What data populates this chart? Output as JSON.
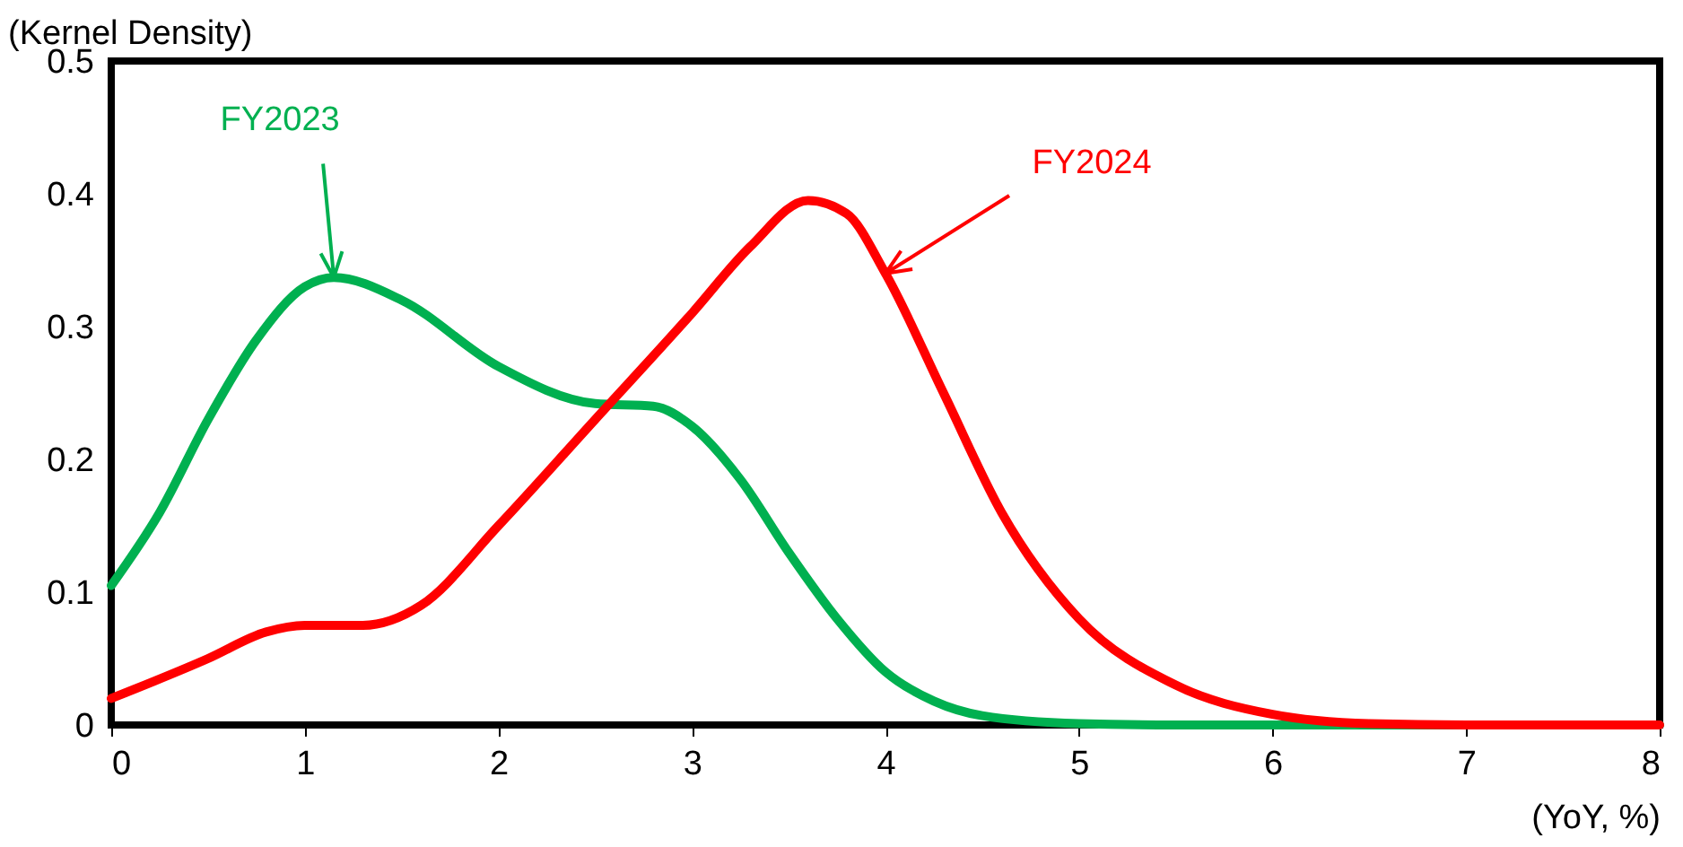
{
  "chart_data": {
    "type": "line",
    "xlabel": "(YoY, %)",
    "ylabel": "(Kernel Density)",
    "xlim": [
      0,
      8
    ],
    "xticks": [
      0,
      1,
      2,
      3,
      4,
      5,
      6,
      7,
      8
    ],
    "ylim": [
      0,
      0.5
    ],
    "yticks": [
      0,
      0.1,
      0.2,
      0.3,
      0.4,
      0.5
    ],
    "grid": false,
    "marker": "none",
    "line_style": "solid",
    "series": [
      {
        "color": "#00b050",
        "x": [
          0,
          0.25,
          0.5,
          0.75,
          1.0,
          1.15,
          1.5,
          2.0,
          2.5,
          2.8,
          3.0,
          3.25,
          3.5,
          3.75,
          4.0,
          4.25,
          4.5,
          5.0,
          5.5,
          6.0,
          7.0,
          8.0
        ],
        "values": [
          0.105,
          0.16,
          0.23,
          0.29,
          0.33,
          0.337,
          0.32,
          0.27,
          0.242,
          0.24,
          0.225,
          0.185,
          0.13,
          0.08,
          0.04,
          0.018,
          0.007,
          0.001,
          0,
          0,
          0,
          0
        ]
      },
      {
        "color": "#ff0000",
        "x": [
          0,
          0.5,
          0.8,
          1.0,
          1.3,
          1.6,
          2.0,
          2.5,
          3.0,
          3.3,
          3.6,
          3.8,
          4.0,
          4.3,
          4.6,
          5.0,
          5.5,
          6.0,
          6.5,
          7.0,
          8.0
        ],
        "values": [
          0.02,
          0.05,
          0.07,
          0.075,
          0.075,
          0.09,
          0.15,
          0.23,
          0.31,
          0.36,
          0.395,
          0.385,
          0.34,
          0.25,
          0.16,
          0.08,
          0.03,
          0.008,
          0.001,
          0,
          0
        ]
      }
    ],
    "annotations": [
      {
        "text": "FY2023",
        "x": 1.15,
        "y": 0.337
      },
      {
        "text": "FY2024",
        "x": 4.0,
        "y": 0.34
      }
    ]
  }
}
